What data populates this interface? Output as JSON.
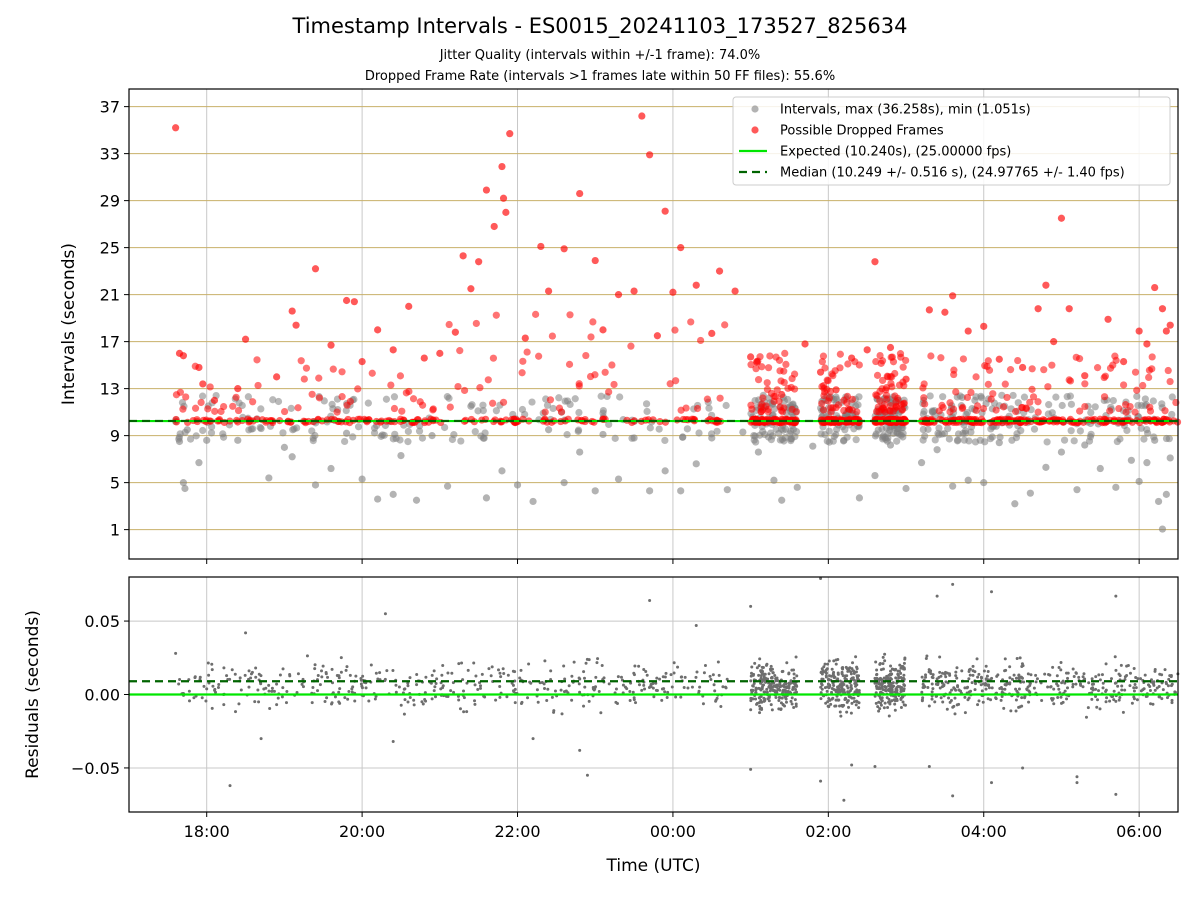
{
  "title": "Timestamp Intervals - ES0015_20241103_173527_825634",
  "subtitle_1": "Jitter Quality (intervals within +/-1 frame): 74.0%",
  "subtitle_2": "Dropped Frame Rate (intervals >1 frames late within 50 FF files): 55.6%",
  "colors": {
    "intervals": "#808080",
    "dropped": "#ff0000",
    "expected": "#00e600",
    "median": "#006400",
    "grid_y_top": "#c8b06a",
    "grid": "#c8c8c8"
  },
  "chart_data": [
    {
      "type": "scatter",
      "xlabel": "",
      "ylabel": "Intervals (seconds)",
      "x_unit": "hours since 00:00 UTC (17.6 = 17:36 previous day)",
      "xlim": [
        -7.0,
        6.5
      ],
      "ylim": [
        -1.5,
        38.5
      ],
      "yticks": [
        1,
        5,
        9,
        13,
        17,
        21,
        25,
        29,
        33,
        37
      ],
      "grid": true,
      "legend_position": "upper right",
      "legend": [
        "Intervals, max (36.258s), min (1.051s)",
        "Possible Dropped Frames",
        "Expected (10.240s), (25.00000 fps)",
        "Median (10.249 +/- 0.516 s), (24.97765 +/- 1.40 fps)"
      ],
      "expected": 10.24,
      "median": 10.249,
      "max": 36.258,
      "min": 1.051,
      "series": [
        {
          "name": "Intervals, max (36.258s), min (1.051s)",
          "points": [
            [
              -6.4,
              10.2
            ],
            [
              -6.35,
              8.5
            ],
            [
              -6.3,
              5.0
            ],
            [
              -6.28,
              4.5
            ],
            [
              -6.25,
              9.5
            ],
            [
              -6.1,
              6.7
            ],
            [
              -6.0,
              8.6
            ],
            [
              -5.6,
              8.6
            ],
            [
              -5.3,
              9.6
            ],
            [
              -5.2,
              5.4
            ],
            [
              -5.0,
              8.0
            ],
            [
              -4.9,
              7.2
            ],
            [
              -4.6,
              4.8
            ],
            [
              -4.4,
              6.2
            ],
            [
              -4.2,
              9.2
            ],
            [
              -4.0,
              5.3
            ],
            [
              -3.8,
              3.6
            ],
            [
              -3.6,
              4.0
            ],
            [
              -3.5,
              7.3
            ],
            [
              -3.3,
              3.5
            ],
            [
              -3.1,
              9.0
            ],
            [
              -2.9,
              4.7
            ],
            [
              -2.6,
              11.5
            ],
            [
              -2.4,
              3.7
            ],
            [
              -2.2,
              6.0
            ],
            [
              -2.0,
              4.8
            ],
            [
              -1.8,
              3.4
            ],
            [
              -1.6,
              9.5
            ],
            [
              -1.4,
              5.0
            ],
            [
              -1.2,
              7.6
            ],
            [
              -1.0,
              4.3
            ],
            [
              -0.9,
              9.1
            ],
            [
              -0.7,
              5.3
            ],
            [
              -0.5,
              8.8
            ],
            [
              -0.3,
              4.3
            ],
            [
              -0.1,
              6.0
            ],
            [
              0.1,
              4.3
            ],
            [
              0.3,
              6.6
            ],
            [
              0.5,
              8.8
            ],
            [
              0.7,
              4.4
            ],
            [
              0.9,
              9.3
            ],
            [
              1.1,
              7.6
            ],
            [
              1.3,
              5.2
            ],
            [
              1.4,
              3.5
            ],
            [
              1.6,
              4.6
            ],
            [
              1.8,
              8.1
            ],
            [
              2.0,
              10.8
            ],
            [
              2.2,
              8.6
            ],
            [
              2.4,
              3.7
            ],
            [
              2.6,
              5.6
            ],
            [
              2.8,
              8.2
            ],
            [
              3.0,
              4.5
            ],
            [
              3.2,
              6.7
            ],
            [
              3.4,
              7.8
            ],
            [
              3.6,
              4.7
            ],
            [
              3.8,
              5.2
            ],
            [
              4.0,
              5.0
            ],
            [
              4.2,
              8.4
            ],
            [
              4.4,
              3.2
            ],
            [
              4.6,
              4.1
            ],
            [
              4.8,
              6.3
            ],
            [
              5.0,
              7.6
            ],
            [
              5.2,
              4.4
            ],
            [
              5.3,
              8.2
            ],
            [
              5.5,
              6.2
            ],
            [
              5.7,
              4.6
            ],
            [
              5.9,
              6.9
            ],
            [
              6.0,
              5.1
            ],
            [
              6.1,
              6.7
            ],
            [
              6.2,
              8.6
            ],
            [
              6.25,
              3.4
            ],
            [
              6.3,
              1.05
            ],
            [
              6.35,
              4.0
            ],
            [
              6.4,
              7.1
            ]
          ]
        },
        {
          "name": "Possible Dropped Frames",
          "points": [
            [
              -6.4,
              35.2
            ],
            [
              -6.35,
              16.0
            ],
            [
              -6.3,
              15.8
            ],
            [
              -6.1,
              14.8
            ],
            [
              -6.05,
              13.4
            ],
            [
              -5.9,
              12.0
            ],
            [
              -5.6,
              13.0
            ],
            [
              -5.5,
              17.2
            ],
            [
              -5.1,
              14.0
            ],
            [
              -4.9,
              19.6
            ],
            [
              -4.85,
              18.4
            ],
            [
              -4.6,
              23.2
            ],
            [
              -4.4,
              16.7
            ],
            [
              -4.2,
              20.5
            ],
            [
              -4.1,
              20.4
            ],
            [
              -4.0,
              15.3
            ],
            [
              -3.8,
              18.0
            ],
            [
              -3.6,
              16.3
            ],
            [
              -3.4,
              20.0
            ],
            [
              -3.2,
              15.6
            ],
            [
              -3.0,
              16.0
            ],
            [
              -2.8,
              17.8
            ],
            [
              -2.7,
              24.3
            ],
            [
              -2.6,
              21.5
            ],
            [
              -2.5,
              23.8
            ],
            [
              -2.4,
              29.9
            ],
            [
              -2.3,
              26.8
            ],
            [
              -2.2,
              31.9
            ],
            [
              -2.18,
              29.2
            ],
            [
              -2.15,
              28.0
            ],
            [
              -2.1,
              34.7
            ],
            [
              -1.9,
              17.3
            ],
            [
              -1.7,
              25.1
            ],
            [
              -1.6,
              21.3
            ],
            [
              -1.4,
              24.9
            ],
            [
              -1.2,
              29.6
            ],
            [
              -1.0,
              23.9
            ],
            [
              -0.9,
              18.0
            ],
            [
              -0.7,
              21.0
            ],
            [
              -0.5,
              21.3
            ],
            [
              -0.4,
              36.2
            ],
            [
              -0.3,
              32.9
            ],
            [
              -0.2,
              17.5
            ],
            [
              -0.1,
              28.1
            ],
            [
              0.0,
              21.2
            ],
            [
              0.1,
              25.0
            ],
            [
              0.3,
              21.8
            ],
            [
              0.5,
              17.7
            ],
            [
              0.6,
              23.0
            ],
            [
              0.8,
              21.3
            ],
            [
              1.0,
              15.7
            ],
            [
              1.4,
              12.5
            ],
            [
              1.7,
              16.8
            ],
            [
              1.9,
              14.4
            ],
            [
              2.1,
              12.9
            ],
            [
              2.3,
              15.6
            ],
            [
              2.5,
              16.3
            ],
            [
              2.6,
              23.8
            ],
            [
              2.8,
              16.5
            ],
            [
              3.0,
              13.8
            ],
            [
              3.3,
              19.7
            ],
            [
              3.5,
              19.5
            ],
            [
              3.6,
              20.9
            ],
            [
              3.8,
              17.9
            ],
            [
              4.0,
              18.3
            ],
            [
              4.2,
              15.5
            ],
            [
              4.5,
              14.8
            ],
            [
              4.7,
              19.8
            ],
            [
              4.8,
              21.8
            ],
            [
              4.9,
              17.0
            ],
            [
              5.0,
              27.5
            ],
            [
              5.1,
              19.8
            ],
            [
              5.3,
              14.1
            ],
            [
              5.6,
              18.9
            ],
            [
              5.8,
              15.3
            ],
            [
              6.0,
              17.9
            ],
            [
              6.1,
              16.8
            ],
            [
              6.2,
              21.6
            ],
            [
              6.3,
              19.8
            ],
            [
              6.35,
              17.9
            ],
            [
              6.4,
              18.4
            ]
          ]
        }
      ]
    },
    {
      "type": "scatter",
      "xlabel": "Time (UTC)",
      "ylabel": "Residuals (seconds)",
      "xlim": [
        -7.0,
        6.5
      ],
      "ylim": [
        -0.08,
        0.08
      ],
      "xticks": [
        "18:00",
        "20:00",
        "22:00",
        "00:00",
        "02:00",
        "04:00",
        "06:00"
      ],
      "yticks": [
        "0.05",
        "0.00",
        "−0.05"
      ],
      "grid": true,
      "expected_residual": 0.0,
      "median_residual": 0.009,
      "outliers": [
        [
          -6.4,
          0.028
        ],
        [
          -5.7,
          -0.062
        ],
        [
          -5.5,
          0.042
        ],
        [
          -5.3,
          -0.03
        ],
        [
          -3.7,
          0.055
        ],
        [
          -3.6,
          -0.032
        ],
        [
          -1.8,
          -0.03
        ],
        [
          -1.2,
          -0.038
        ],
        [
          -1.1,
          -0.055
        ],
        [
          -0.3,
          0.064
        ],
        [
          0.3,
          0.047
        ],
        [
          1.0,
          0.06
        ],
        [
          1.0,
          -0.051
        ],
        [
          1.9,
          -0.059
        ],
        [
          1.9,
          0.079
        ],
        [
          2.2,
          -0.072
        ],
        [
          2.3,
          -0.048
        ],
        [
          2.6,
          -0.049
        ],
        [
          3.3,
          -0.049
        ],
        [
          3.4,
          0.067
        ],
        [
          3.6,
          -0.069
        ],
        [
          3.6,
          0.075
        ],
        [
          4.1,
          0.07
        ],
        [
          4.1,
          -0.06
        ],
        [
          4.5,
          -0.05
        ],
        [
          5.2,
          -0.056
        ],
        [
          5.2,
          -0.06
        ],
        [
          5.7,
          -0.068
        ],
        [
          5.7,
          0.067
        ]
      ]
    }
  ]
}
